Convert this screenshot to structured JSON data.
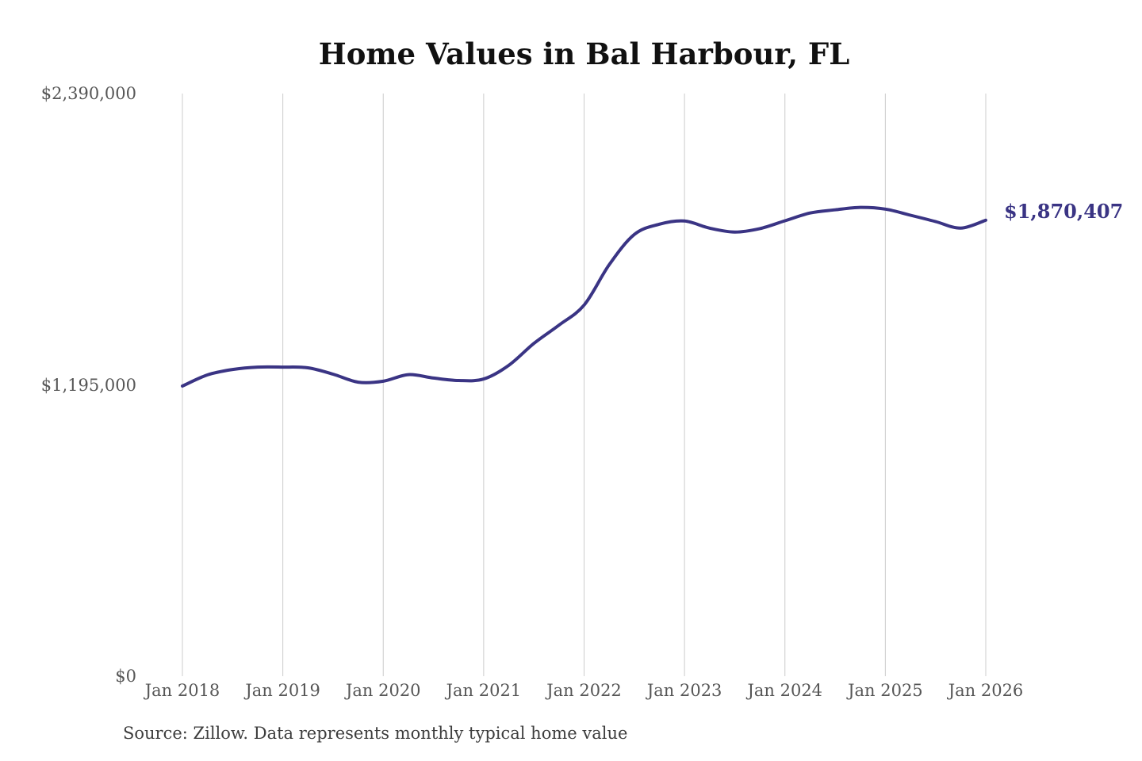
{
  "title": "Home Values in Bal Harbour, FL",
  "source_note": "Source: Zillow. Data represents monthly typical home value",
  "colors": {
    "line": "#3a3484",
    "grid": "#cccccc",
    "tick_text": "#565656",
    "title_text": "#111111",
    "source_text": "#3d3d3d",
    "end_label_text": "#3a3484",
    "background": "#ffffff"
  },
  "chart_data": {
    "type": "line",
    "title": "Home Values in Bal Harbour, FL",
    "xlabel": "",
    "ylabel": "",
    "x_tick_labels": [
      "Jan 2018",
      "Jan 2019",
      "Jan 2020",
      "Jan 2021",
      "Jan 2022",
      "Jan 2023",
      "Jan 2024",
      "Jan 2025",
      "Jan 2026"
    ],
    "y_tick_labels": [
      "$0",
      "$1,195,000",
      "$2,390,000"
    ],
    "y_ticks": [
      0,
      1195000,
      2390000
    ],
    "ylim": [
      0,
      2390000
    ],
    "x_range": [
      "2018-01",
      "2026-01"
    ],
    "grid": "vertical",
    "legend": "none",
    "series": [
      {
        "name": "Typical home value",
        "x": [
          "2018-01",
          "2018-04",
          "2018-07",
          "2018-10",
          "2019-01",
          "2019-04",
          "2019-07",
          "2019-10",
          "2020-01",
          "2020-04",
          "2020-07",
          "2020-10",
          "2021-01",
          "2021-04",
          "2021-07",
          "2021-10",
          "2022-01",
          "2022-04",
          "2022-07",
          "2022-10",
          "2023-01",
          "2023-04",
          "2023-07",
          "2023-10",
          "2024-01",
          "2024-04",
          "2024-07",
          "2024-10",
          "2025-01",
          "2025-04",
          "2025-07",
          "2025-10",
          "2026-01"
        ],
        "values": [
          1190000,
          1236000,
          1258000,
          1268000,
          1268000,
          1265000,
          1239000,
          1206000,
          1210000,
          1237000,
          1223000,
          1213000,
          1219000,
          1275000,
          1365000,
          1440000,
          1522000,
          1688000,
          1812000,
          1854000,
          1867000,
          1838000,
          1822000,
          1836000,
          1868000,
          1900000,
          1913000,
          1923000,
          1916000,
          1891000,
          1865000,
          1838000,
          1870407
        ]
      }
    ],
    "end_label": "$1,870,407",
    "last_value": 1870407
  }
}
